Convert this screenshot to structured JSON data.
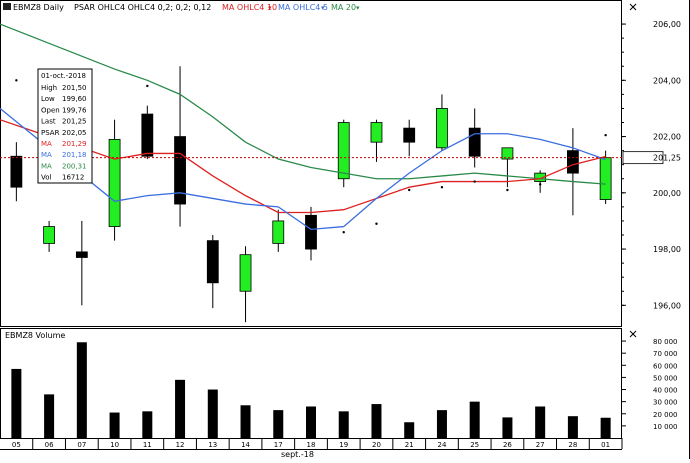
{
  "header": {
    "symbol_label": "EBMZ8 Daily",
    "psar_label": "PSAR OHLC4 OHLC4  0,2; 0,2; 0,12",
    "ma10_label": "MA OHLC4  10",
    "ma5_label": "MA OHLC4  5",
    "ma20_label": "MA 20"
  },
  "colors": {
    "up": "#22ee22",
    "down": "#000000",
    "ma10": "#e02020",
    "ma5": "#3a6ee0",
    "ma20": "#2a8a4a",
    "last_price_line": "#cc0000",
    "axis_text": "#000000"
  },
  "tooltip": {
    "date": "01-oct.-2018",
    "rows": [
      {
        "label": "High",
        "value": "201,50"
      },
      {
        "label": "Low",
        "value": "199,60"
      },
      {
        "label": "Open",
        "value": "199,76"
      },
      {
        "label": "Last",
        "value": "201,25"
      },
      {
        "label": "PSAR",
        "value": "202,05"
      },
      {
        "label": "MA",
        "value": "201,29"
      },
      {
        "label": "MA",
        "value": "201,18"
      },
      {
        "label": "MA",
        "value": "200,31"
      },
      {
        "label": "Vol",
        "value": "16712"
      }
    ]
  },
  "last_price_label": "201,25",
  "volume_panel": {
    "title": "EBMZ8 Volume"
  },
  "month_label": "sept.-18",
  "chart_data": [
    {
      "type": "candlestick",
      "x": [
        "05",
        "06",
        "07",
        "10",
        "11",
        "12",
        "13",
        "14",
        "17",
        "18",
        "19",
        "20",
        "21",
        "24",
        "25",
        "26",
        "27",
        "28",
        "01"
      ],
      "open": [
        201.3,
        198.2,
        197.9,
        198.8,
        202.8,
        202.0,
        198.3,
        196.5,
        198.2,
        199.2,
        200.5,
        201.8,
        202.3,
        201.6,
        202.3,
        201.2,
        200.4,
        201.5,
        199.76
      ],
      "high": [
        201.8,
        199.0,
        199.0,
        202.6,
        203.1,
        204.5,
        198.5,
        198.1,
        199.4,
        199.5,
        202.6,
        202.6,
        202.6,
        203.5,
        203.0,
        201.6,
        200.8,
        202.3,
        201.5
      ],
      "low": [
        199.7,
        197.9,
        196.0,
        198.3,
        201.2,
        198.8,
        195.9,
        195.4,
        197.9,
        197.6,
        200.2,
        201.1,
        201.3,
        201.5,
        200.9,
        200.2,
        200.0,
        199.2,
        199.6
      ],
      "close": [
        200.2,
        198.8,
        197.7,
        201.9,
        201.3,
        199.6,
        196.8,
        197.8,
        199.0,
        198.0,
        202.5,
        202.5,
        201.8,
        203.0,
        201.3,
        201.6,
        200.7,
        200.7,
        201.25
      ],
      "ma5": [
        203.0,
        null,
        null,
        199.7,
        199.9,
        200.0,
        199.8,
        199.6,
        199.5,
        198.7,
        198.8,
        199.8,
        200.7,
        201.5,
        202.1,
        202.1,
        201.9,
        201.6,
        201.18
      ],
      "ma10": [
        202.6,
        null,
        null,
        201.2,
        201.4,
        201.4,
        200.6,
        199.9,
        199.3,
        199.3,
        199.4,
        199.8,
        200.2,
        200.4,
        200.4,
        200.4,
        200.5,
        201.0,
        201.29
      ],
      "ma20": [
        206.0,
        null,
        null,
        204.4,
        204.0,
        203.5,
        202.7,
        201.8,
        201.2,
        200.9,
        200.7,
        200.5,
        200.5,
        200.6,
        200.7,
        200.6,
        200.5,
        200.4,
        200.31
      ],
      "psar": [
        204.0,
        null,
        null,
        null,
        203.8,
        null,
        null,
        null,
        null,
        198.1,
        198.6,
        198.9,
        200.1,
        200.2,
        200.4,
        200.1,
        200.3,
        null,
        202.05
      ],
      "ylim": [
        195.3,
        206.5
      ],
      "y_ticks": [
        {
          "v": 206.0,
          "label": "206,00"
        },
        {
          "v": 204.0,
          "label": "204,00"
        },
        {
          "v": 202.0,
          "label": "202,00"
        },
        {
          "v": 200.0,
          "label": "200,00"
        },
        {
          "v": 198.0,
          "label": "198,00"
        },
        {
          "v": 196.0,
          "label": "196,00"
        }
      ],
      "last_price": 201.25
    },
    {
      "type": "bar",
      "title": "EBMZ8 Volume",
      "categories": [
        "05",
        "06",
        "07",
        "10",
        "11",
        "12",
        "13",
        "14",
        "17",
        "18",
        "19",
        "20",
        "21",
        "24",
        "25",
        "26",
        "27",
        "28",
        "01"
      ],
      "values": [
        57000,
        36000,
        79000,
        21000,
        22000,
        48000,
        40000,
        27000,
        23000,
        26000,
        22000,
        28000,
        13000,
        23000,
        30000,
        17000,
        26000,
        18000,
        16712
      ],
      "ylim": [
        0,
        85000
      ],
      "y_ticks": [
        {
          "v": 80000,
          "label": "80 000"
        },
        {
          "v": 70000,
          "label": "70 000"
        },
        {
          "v": 60000,
          "label": "60 000"
        },
        {
          "v": 50000,
          "label": "50 000"
        },
        {
          "v": 40000,
          "label": "40 000"
        },
        {
          "v": 30000,
          "label": "30 000"
        },
        {
          "v": 20000,
          "label": "20 000"
        },
        {
          "v": 10000,
          "label": "10 000"
        }
      ]
    }
  ]
}
